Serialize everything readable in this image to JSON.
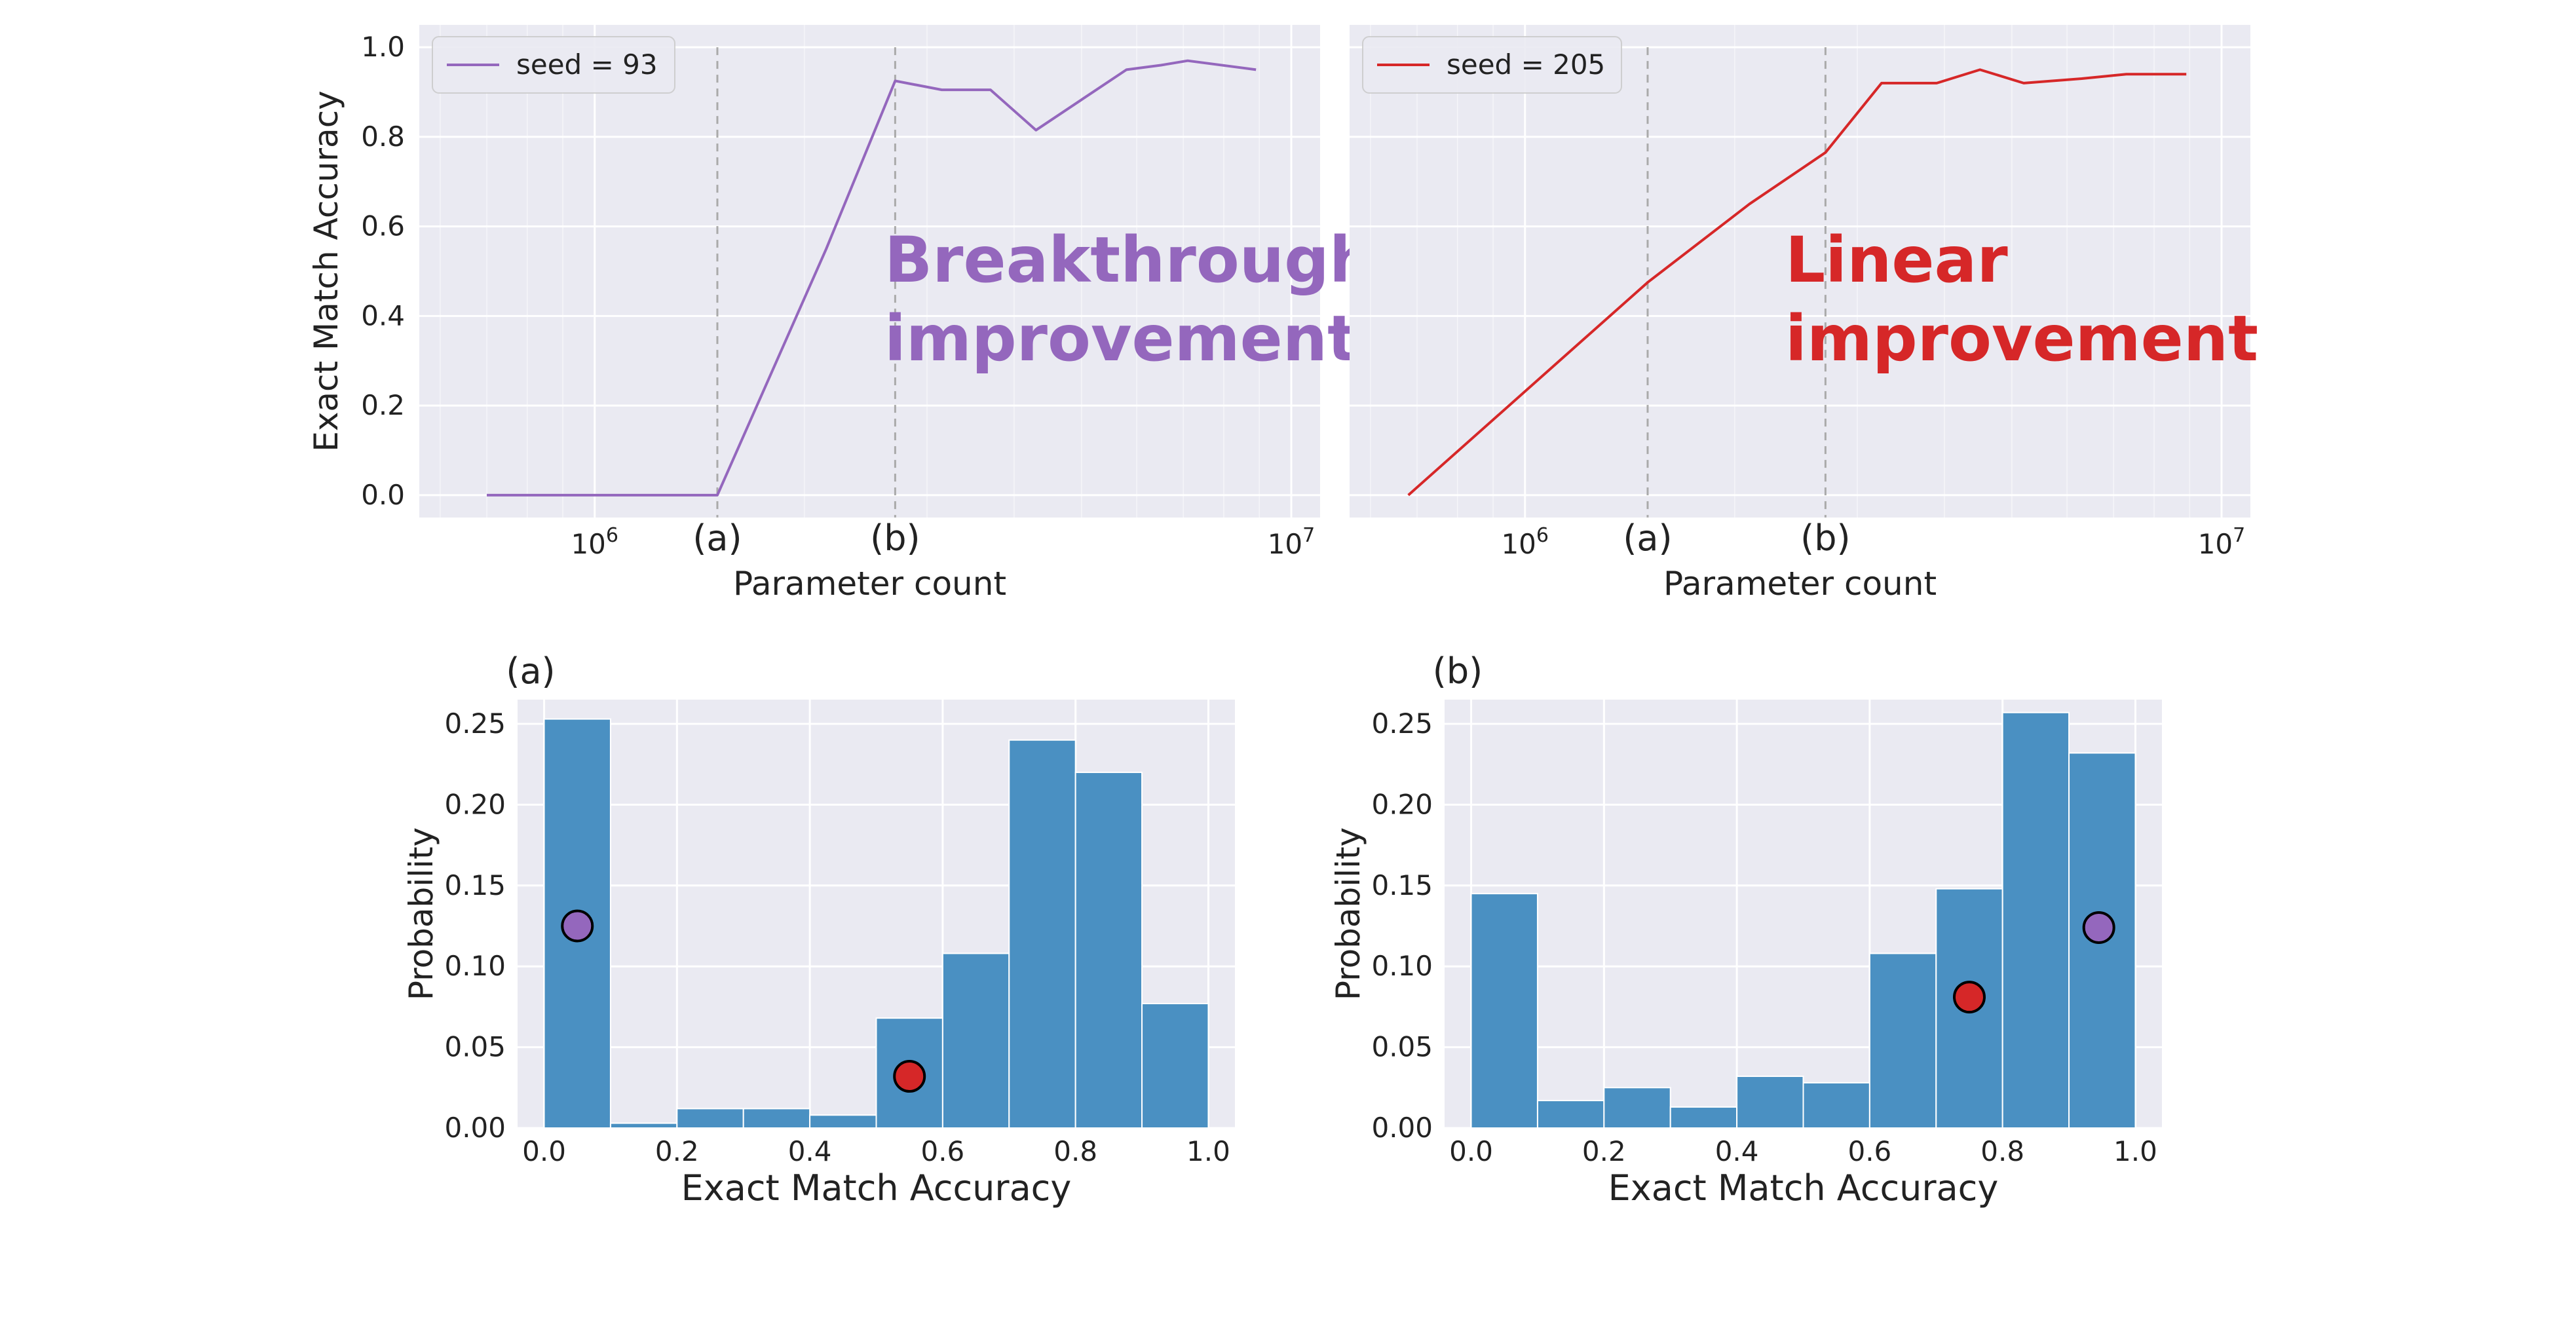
{
  "chart_data": [
    {
      "id": "top-left",
      "type": "line",
      "xscale": "log",
      "xlabel": "Parameter count",
      "ylabel": "Exact Match Accuracy",
      "xlim": [
        560000,
        11000000
      ],
      "ylim": [
        -0.05,
        1.05
      ],
      "yticks": [
        "0.0",
        "0.2",
        "0.4",
        "0.6",
        "0.8",
        "1.0"
      ],
      "ytick_values": [
        0.0,
        0.2,
        0.4,
        0.6,
        0.8,
        1.0
      ],
      "xticks": [
        {
          "base": "10",
          "exp": "6",
          "value": 1000000
        },
        {
          "base": "10",
          "exp": "7",
          "value": 10000000
        }
      ],
      "markers": [
        {
          "label": "(a)",
          "x": 1500000
        },
        {
          "label": "(b)",
          "x": 2700000
        }
      ],
      "color": "#9467bd",
      "legend": "seed = 93",
      "legend_position": "top-left",
      "annotation": [
        "Breakthrough",
        "improvement"
      ],
      "series": {
        "x": [
          700000,
          1500000,
          2150000,
          2700000,
          3150000,
          3700000,
          4300000,
          5800000,
          6500000,
          7100000,
          8900000
        ],
        "y": [
          0.0,
          0.0,
          0.55,
          0.925,
          0.905,
          0.905,
          0.815,
          0.95,
          0.96,
          0.97,
          0.95
        ]
      }
    },
    {
      "id": "top-right",
      "type": "line",
      "xscale": "log",
      "xlabel": "Parameter count",
      "ylabel": "",
      "xlim": [
        560000,
        11000000
      ],
      "ylim": [
        -0.05,
        1.05
      ],
      "yticks": [
        "0.0",
        "0.2",
        "0.4",
        "0.6",
        "0.8",
        "1.0"
      ],
      "ytick_values": [
        0.0,
        0.2,
        0.4,
        0.6,
        0.8,
        1.0
      ],
      "xticks": [
        {
          "base": "10",
          "exp": "6",
          "value": 1000000
        },
        {
          "base": "10",
          "exp": "7",
          "value": 10000000
        }
      ],
      "markers": [
        {
          "label": "(a)",
          "x": 1500000
        },
        {
          "label": "(b)",
          "x": 2700000
        }
      ],
      "color": "#d62728",
      "legend": "seed = 205",
      "legend_position": "top-left",
      "annotation": [
        "Linear",
        "improvement"
      ],
      "series": {
        "x": [
          680000,
          1500000,
          2100000,
          2700000,
          3250000,
          3900000,
          4500000,
          5200000,
          6300000,
          7300000,
          8900000
        ],
        "y": [
          0.0,
          0.475,
          0.65,
          0.765,
          0.92,
          0.92,
          0.95,
          0.92,
          0.93,
          0.94,
          0.94
        ]
      }
    },
    {
      "id": "bottom-left",
      "type": "bar",
      "title": "(a)",
      "xlabel": "Exact Match Accuracy",
      "ylabel": "Probability",
      "xlim": [
        -0.04,
        1.04
      ],
      "ylim": [
        0,
        0.265
      ],
      "xticks": [
        "0.0",
        "0.2",
        "0.4",
        "0.6",
        "0.8",
        "1.0"
      ],
      "xtick_values": [
        0.0,
        0.2,
        0.4,
        0.6,
        0.8,
        1.0
      ],
      "yticks": [
        "0.00",
        "0.05",
        "0.10",
        "0.15",
        "0.20",
        "0.25"
      ],
      "ytick_values": [
        0.0,
        0.05,
        0.1,
        0.15,
        0.2,
        0.25
      ],
      "bin_edges": [
        0.0,
        0.1,
        0.2,
        0.3,
        0.4,
        0.5,
        0.6,
        0.7,
        0.8,
        0.9,
        1.0
      ],
      "values": [
        0.253,
        0.003,
        0.012,
        0.012,
        0.008,
        0.068,
        0.108,
        0.24,
        0.22,
        0.077
      ],
      "bar_color": "#4a90c2",
      "points": [
        {
          "x": 0.05,
          "y": 0.125,
          "color": "#9467bd"
        },
        {
          "x": 0.55,
          "y": 0.032,
          "color": "#d62728"
        }
      ]
    },
    {
      "id": "bottom-right",
      "type": "bar",
      "title": "(b)",
      "xlabel": "Exact Match Accuracy",
      "ylabel": "Probability",
      "xlim": [
        -0.04,
        1.04
      ],
      "ylim": [
        0,
        0.265
      ],
      "xticks": [
        "0.0",
        "0.2",
        "0.4",
        "0.6",
        "0.8",
        "1.0"
      ],
      "xtick_values": [
        0.0,
        0.2,
        0.4,
        0.6,
        0.8,
        1.0
      ],
      "yticks": [
        "0.00",
        "0.05",
        "0.10",
        "0.15",
        "0.20",
        "0.25"
      ],
      "ytick_values": [
        0.0,
        0.05,
        0.1,
        0.15,
        0.2,
        0.25
      ],
      "bin_edges": [
        0.0,
        0.1,
        0.2,
        0.3,
        0.4,
        0.5,
        0.6,
        0.7,
        0.8,
        0.9,
        1.0
      ],
      "values": [
        0.145,
        0.017,
        0.025,
        0.013,
        0.032,
        0.028,
        0.108,
        0.148,
        0.257,
        0.232
      ],
      "bar_color": "#4a90c2",
      "points": [
        {
          "x": 0.75,
          "y": 0.081,
          "color": "#d62728"
        },
        {
          "x": 0.945,
          "y": 0.124,
          "color": "#9467bd"
        }
      ]
    }
  ]
}
